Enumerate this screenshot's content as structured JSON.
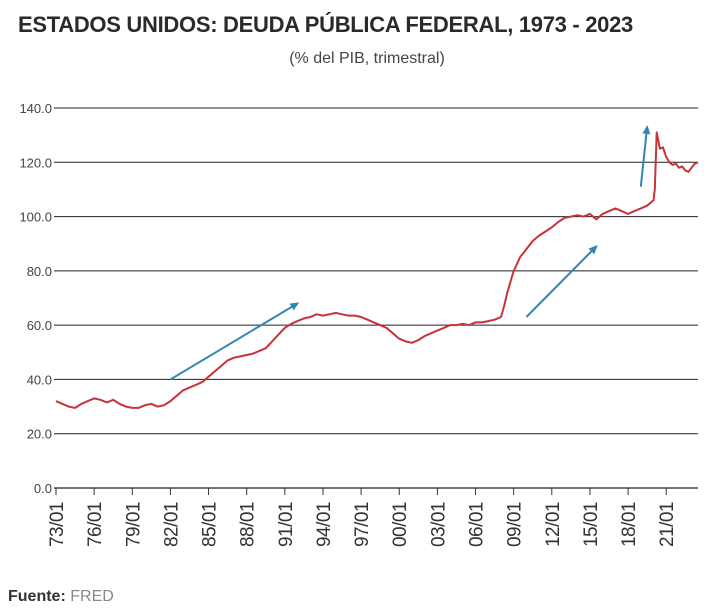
{
  "title": "ESTADOS UNIDOS: DEUDA PÚBLICA FEDERAL, 1973 - 2023",
  "subtitle": "(% del PIB, trimestral)",
  "source": {
    "label": "Fuente:",
    "value": "FRED"
  },
  "colors": {
    "line": "#c8323a",
    "arrow": "#2f86b7",
    "grid": "#222222"
  },
  "chart_data": {
    "type": "line",
    "title": "ESTADOS UNIDOS: DEUDA PÚBLICA FEDERAL, 1973 - 2023",
    "subtitle": "(% del PIB, trimestral)",
    "xlabel": "",
    "ylabel": "",
    "ylim": [
      0,
      140
    ],
    "xlim": [
      1973,
      2023.5
    ],
    "grid": true,
    "y_ticks": [
      "0.0",
      "20.0",
      "40.0",
      "60.0",
      "80.0",
      "100.0",
      "120.0",
      "140.0"
    ],
    "x_ticks": [
      "73/01",
      "76/01",
      "79/01",
      "82/01",
      "85/01",
      "88/01",
      "91/01",
      "94/01",
      "97/01",
      "00/01",
      "03/01",
      "06/01",
      "09/01",
      "12/01",
      "15/01",
      "18/01",
      "21/01"
    ],
    "series": [
      {
        "x": [
          1973.0,
          1973.5,
          1974.0,
          1974.5,
          1975.0,
          1975.5,
          1976.0,
          1976.5,
          1977.0,
          1977.5,
          1978.0,
          1978.5,
          1979.0,
          1979.5,
          1980.0,
          1980.5,
          1981.0,
          1981.5,
          1982.0,
          1982.5,
          1983.0,
          1983.5,
          1984.0,
          1984.5,
          1985.0,
          1985.5,
          1986.0,
          1986.5,
          1987.0,
          1987.5,
          1988.0,
          1988.5,
          1989.0,
          1989.5,
          1990.0,
          1990.5,
          1991.0,
          1991.5,
          1992.0,
          1992.5,
          1993.0,
          1993.5,
          1994.0,
          1994.5,
          1995.0,
          1995.5,
          1996.0,
          1996.5,
          1997.0,
          1997.5,
          1998.0,
          1998.5,
          1999.0,
          1999.5,
          2000.0,
          2000.5,
          2001.0,
          2001.5,
          2002.0,
          2002.5,
          2003.0,
          2003.5,
          2004.0,
          2004.5,
          2005.0,
          2005.5,
          2006.0,
          2006.5,
          2007.0,
          2007.5,
          2008.0,
          2008.25,
          2008.5,
          2008.75,
          2009.0,
          2009.5,
          2010.0,
          2010.5,
          2011.0,
          2011.5,
          2012.0,
          2012.5,
          2013.0,
          2013.5,
          2014.0,
          2014.5,
          2015.0,
          2015.5,
          2016.0,
          2016.5,
          2017.0,
          2017.5,
          2018.0,
          2018.5,
          2019.0,
          2019.5,
          2019.75,
          2020.0,
          2020.1,
          2020.25,
          2020.5,
          2020.75,
          2021.0,
          2021.25,
          2021.5,
          2021.75,
          2022.0,
          2022.25,
          2022.5,
          2022.75,
          2023.0,
          2023.25,
          2023.5
        ],
        "values": [
          32.0,
          31.0,
          30.0,
          29.5,
          31.0,
          32.0,
          33.0,
          32.5,
          31.5,
          32.5,
          31.0,
          30.0,
          29.5,
          29.5,
          30.5,
          31.0,
          30.0,
          30.5,
          32.0,
          34.0,
          36.0,
          37.0,
          38.0,
          39.0,
          41.0,
          43.0,
          45.0,
          47.0,
          48.0,
          48.5,
          49.0,
          49.5,
          50.5,
          51.5,
          54.0,
          56.5,
          59.0,
          60.5,
          61.5,
          62.5,
          63.0,
          64.0,
          63.5,
          64.0,
          64.5,
          64.0,
          63.5,
          63.5,
          63.0,
          62.0,
          61.0,
          60.0,
          59.0,
          57.0,
          55.0,
          54.0,
          53.5,
          54.5,
          56.0,
          57.0,
          58.0,
          59.0,
          60.0,
          60.0,
          60.5,
          60.0,
          61.0,
          61.0,
          61.5,
          62.0,
          63.0,
          67.0,
          72.0,
          76.0,
          80.0,
          85.0,
          88.0,
          91.0,
          93.0,
          94.5,
          96.0,
          98.0,
          99.5,
          100.0,
          100.5,
          100.0,
          101.0,
          99.0,
          101.0,
          102.0,
          103.0,
          102.0,
          101.0,
          102.0,
          103.0,
          104.0,
          105.0,
          106.0,
          110.0,
          131.0,
          125.0,
          125.5,
          122.0,
          120.0,
          119.0,
          119.5,
          118.0,
          118.5,
          117.0,
          116.5,
          118.0,
          119.5,
          120.0
        ]
      }
    ],
    "annotations": [
      {
        "type": "arrow",
        "from": [
          1982.0,
          40.0
        ],
        "to": [
          1992.0,
          68.0
        ]
      },
      {
        "type": "arrow",
        "from": [
          2010.0,
          63.0
        ],
        "to": [
          2015.5,
          89.0
        ]
      },
      {
        "type": "arrow",
        "from": [
          2019.0,
          111.0
        ],
        "to": [
          2019.5,
          133.0
        ]
      }
    ]
  }
}
